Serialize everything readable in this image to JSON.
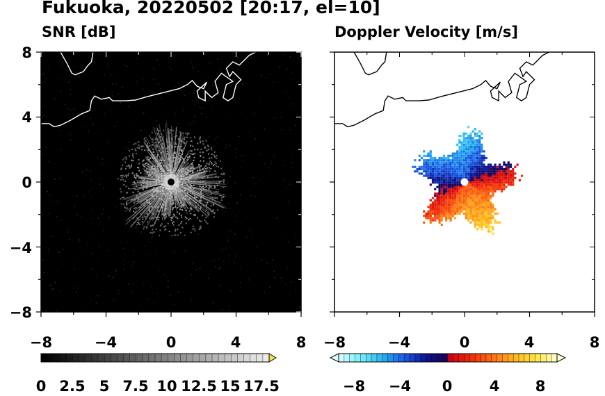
{
  "title": "Fukuoka, 20220502 [20:17, el=10]",
  "colors": {
    "snr_bg": "#000000",
    "coast_dark": "#ffffff",
    "coast_light": "#000000"
  },
  "panels": [
    {
      "id": "snr",
      "title": "SNR [dB]",
      "colorbar_ticks": [
        "0",
        "2.5",
        "5",
        "7.5",
        "10",
        "12.5",
        "15",
        "17.5"
      ],
      "colorbar_range": [
        0,
        18
      ]
    },
    {
      "id": "doppler",
      "title": "Doppler Velocity [m/s]",
      "colorbar_ticks": [
        "−8",
        "−4",
        "0",
        "4",
        "8"
      ],
      "colorbar_range": [
        -10,
        10
      ]
    }
  ],
  "chart_data": [
    {
      "type": "heatmap",
      "title": "SNR [dB]",
      "x_ticks": [
        "−8",
        "−4",
        "0",
        "4",
        "8"
      ],
      "y_ticks": [
        "8",
        "4",
        "0",
        "−4",
        "−8"
      ],
      "xlim": [
        -8,
        8
      ],
      "ylim": [
        -8,
        8
      ],
      "radar_site": [
        0,
        0
      ],
      "echo_extent_km": 3.2
    },
    {
      "type": "heatmap",
      "title": "Doppler Velocity [m/s]",
      "x_ticks": [
        "−8",
        "−4",
        "0",
        "4",
        "8"
      ],
      "y_ticks": [
        "8",
        "4",
        "0",
        "−4",
        "−8"
      ],
      "xlim": [
        -8,
        8
      ],
      "ylim": [
        -8,
        8
      ],
      "radar_site": [
        0,
        0
      ],
      "echo_extent_km": 3.2
    }
  ]
}
